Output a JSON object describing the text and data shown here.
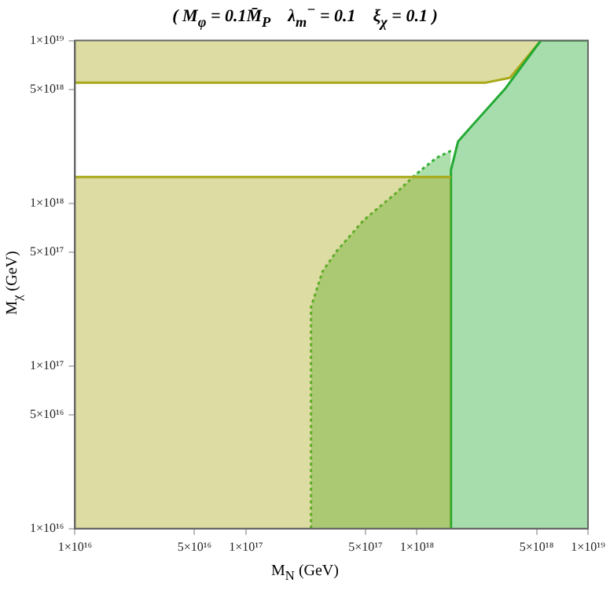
{
  "chart_data": {
    "type": "area",
    "title": "( M$_{φ}$ = 0.1M̄$_{P}$    λ$_{m}$$^{−}$ = 0.1    ξ$_{χ}$ = 0.1 )",
    "xlabel": "M$_{N}$ (GeV)",
    "ylabel": "M$_{χ}$ (GeV)",
    "log": "xy",
    "grid": false,
    "legend": false,
    "xlim": [
      1e+16,
      1e+19
    ],
    "ylim": [
      1e+16,
      1e+19
    ],
    "xticks": [
      {
        "value": 1e+16,
        "label": "1×10¹⁶"
      },
      {
        "value": 5e+16,
        "label": "5×10¹⁶"
      },
      {
        "value": 1e+17,
        "label": "1×10¹⁷"
      },
      {
        "value": 5e+17,
        "label": "5×10¹⁷"
      },
      {
        "value": 1e+18,
        "label": "1×10¹⁸"
      },
      {
        "value": 5e+18,
        "label": "5×10¹⁸"
      },
      {
        "value": 1e+19,
        "label": "1×10¹⁹"
      }
    ],
    "yticks": [
      {
        "value": 1e+16,
        "label": "1×10¹⁶"
      },
      {
        "value": 5e+16,
        "label": "5×10¹⁶"
      },
      {
        "value": 1e+17,
        "label": "1×10¹⁷"
      },
      {
        "value": 5e+17,
        "label": "5×10¹⁷"
      },
      {
        "value": 1e+18,
        "label": "1×10¹⁸"
      },
      {
        "value": 5e+18,
        "label": "5×10¹⁸"
      },
      {
        "value": 1e+19,
        "label": "1×10¹⁹"
      }
    ],
    "series": [
      {
        "color": "#a8a818",
        "line_style": "solid",
        "x": [
          1e+16,
          1.58e+18
        ],
        "values": [
          1.45e+18,
          1.45e+18
        ]
      },
      {
        "color": "#33b033",
        "line_style": "dotted",
        "x": [
          2.4e+17,
          2.4e+17,
          2.8e+17,
          3.4e+17,
          4.9e+17,
          7.5e+17,
          9.8e+17,
          1.3e+18,
          1.58e+18
        ],
        "values": [
          1e+16,
          2.3e+17,
          3.8e+17,
          5.1e+17,
          7.9e+17,
          1.15e+18,
          1.5e+18,
          1.9e+18,
          2.1e+18
        ]
      },
      {
        "color": "#22aa33",
        "line_style": "solid",
        "x": [
          1.58e+18,
          1.58e+18,
          1.74e+18,
          2.1e+18,
          3.3e+18,
          5.3e+18,
          1e+19
        ],
        "values": [
          1e+16,
          1.6e+18,
          2.4e+18,
          3e+18,
          5.1e+18,
          1e+19,
          1e+19
        ]
      },
      {
        "type": "line",
        "color": "#a8a818",
        "line_style": "solid",
        "x": [
          1e+16,
          2.5e+18,
          3.5e+18,
          5.3e+18
        ],
        "values": [
          5.5e+18,
          5.5e+18,
          5.9e+18,
          1e+19
        ],
        "lower": [
          5.5e+18,
          5.5e+18,
          5.9e+18,
          1e+19
        ],
        "upper": [
          1e+19,
          1e+19,
          1e+19,
          1e+19
        ]
      }
    ]
  }
}
